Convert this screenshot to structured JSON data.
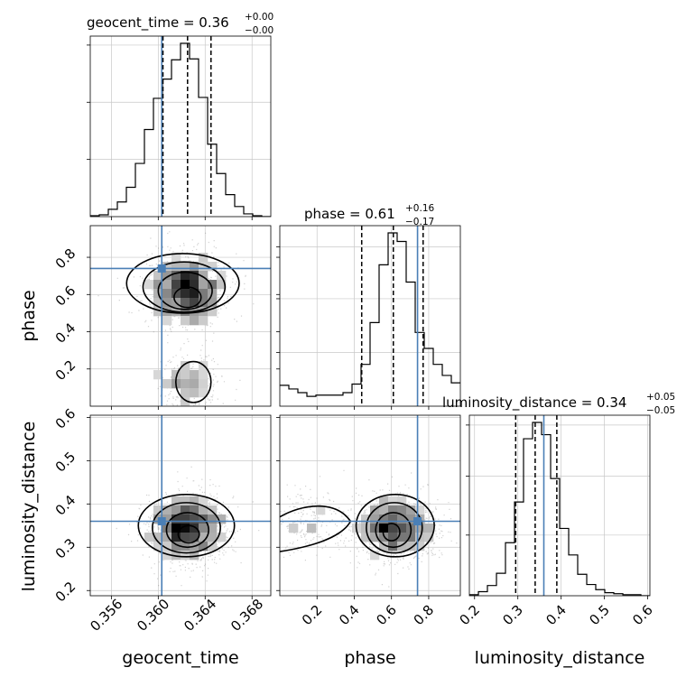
{
  "chart_data": {
    "type": "corner",
    "parameters": [
      "geocent_time",
      "phase",
      "luminosity_distance"
    ],
    "injection": {
      "color": "#4a7fb6",
      "geocent_time": 0.3603,
      "phase": 0.74,
      "luminosity_distance": 0.36
    },
    "titles": [
      {
        "param": "geocent_time",
        "text": "geocent_time = 0.36",
        "plus": "+0.00",
        "minus": "−0.00"
      },
      {
        "param": "phase",
        "text": "phase = 0.61",
        "plus": "+0.16",
        "minus": "−0.17"
      },
      {
        "param": "luminosity_distance",
        "text": "luminosity_distance = 0.34",
        "plus": "+0.05",
        "minus": "−0.05"
      }
    ],
    "axes": {
      "geocent_time": {
        "label": "geocent_time",
        "range": [
          0.3542,
          0.3696
        ],
        "ticks": [
          0.356,
          0.36,
          0.364,
          0.368
        ],
        "tick_labels": [
          "0.356",
          "0.360",
          "0.364",
          "0.368"
        ]
      },
      "phase": {
        "label": "phase",
        "range": [
          0.0,
          0.97
        ],
        "ticks": [
          0.2,
          0.4,
          0.6,
          0.8
        ],
        "tick_labels": [
          "0.2",
          "0.4",
          "0.6",
          "0.8"
        ]
      },
      "luminosity_distance": {
        "label": "luminosity_distance",
        "range": [
          0.188,
          0.605
        ],
        "ticks": [
          0.2,
          0.3,
          0.4,
          0.5,
          0.6
        ],
        "tick_labels": [
          "0.2",
          "0.3",
          "0.4",
          "0.5",
          "0.6"
        ]
      }
    },
    "histograms": {
      "geocent_time": {
        "edges": [
          0.3542,
          0.35497,
          0.35574,
          0.35651,
          0.35728,
          0.35805,
          0.35882,
          0.35959,
          0.36036,
          0.36113,
          0.3619,
          0.36267,
          0.36344,
          0.36421,
          0.36498,
          0.36575,
          0.36652,
          0.36729,
          0.36806,
          0.36883,
          0.3696
        ],
        "counts": [
          1,
          2,
          8,
          16,
          32,
          58,
          95,
          129,
          150,
          171,
          189,
          172,
          130,
          79,
          47,
          24,
          11,
          3,
          1,
          0
        ],
        "quantiles": [
          0.3604,
          0.3625,
          0.3645
        ],
        "grid_fracs": [
          0.33,
          0.66,
          0.99
        ]
      },
      "phase": {
        "edges": [
          0.0,
          0.0485,
          0.097,
          0.1455,
          0.194,
          0.2425,
          0.291,
          0.3395,
          0.388,
          0.4365,
          0.485,
          0.5335,
          0.582,
          0.6305,
          0.679,
          0.7275,
          0.776,
          0.8245,
          0.873,
          0.9215,
          0.97
        ],
        "counts": [
          17,
          14,
          11,
          8,
          9,
          9,
          9,
          11,
          18,
          34,
          68,
          115,
          141,
          134,
          101,
          60,
          47,
          34,
          25,
          19
        ],
        "quantiles": [
          0.44,
          0.61,
          0.77
        ],
        "grid_fracs": [
          0.31,
          0.62,
          0.92
        ]
      },
      "luminosity_distance": {
        "edges": [
          0.188,
          0.2089,
          0.2297,
          0.2506,
          0.2714,
          0.2923,
          0.3131,
          0.334,
          0.3548,
          0.3757,
          0.3965,
          0.4174,
          0.4382,
          0.4591,
          0.4799,
          0.5008,
          0.5216,
          0.5425,
          0.5633,
          0.5842,
          0.605
        ],
        "counts": [
          1,
          4,
          10,
          22,
          52,
          92,
          154,
          170,
          158,
          115,
          66,
          40,
          21,
          11,
          6,
          3,
          2,
          1,
          1,
          0
        ],
        "quantiles": [
          0.295,
          0.34,
          0.39
        ],
        "grid_fracs": [
          0.35,
          0.69,
          0.985
        ]
      }
    },
    "pairs": [
      {
        "x": "geocent_time",
        "y": "phase"
      },
      {
        "x": "geocent_time",
        "y": "luminosity_distance"
      },
      {
        "x": "phase",
        "y": "luminosity_distance"
      }
    ]
  }
}
